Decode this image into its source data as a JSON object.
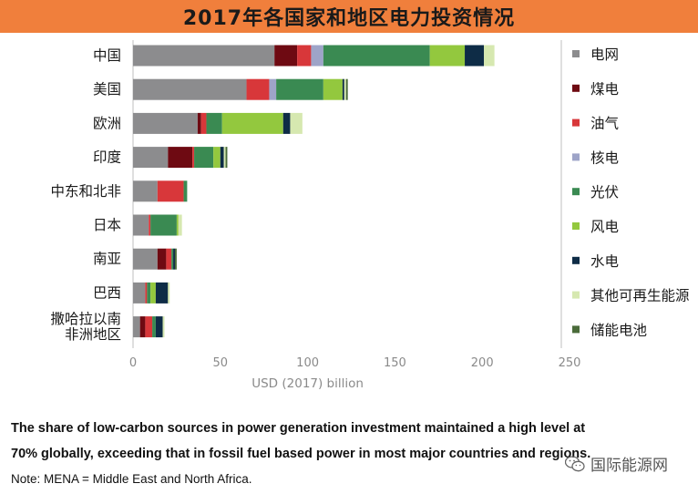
{
  "header": {
    "title": "2017年各国家和地区电力投资情况"
  },
  "caption": "The share of low-carbon sources in power generation investment maintained a high level at 70% globally, exceeding that in fossil fuel based power in most major countries and regions.",
  "note": "Note: MENA = Middle East and North Africa.",
  "watermark": {
    "text": "国际能源网",
    "icon": "wechat-icon"
  },
  "chart_data": {
    "type": "bar",
    "orientation": "horizontal",
    "stacked": true,
    "title": "2017年各国家和地区电力投资情况",
    "xlabel": "USD (2017) billion",
    "ylabel": "",
    "xlim": [
      0,
      250
    ],
    "xticks": [
      0,
      50,
      100,
      150,
      200,
      250
    ],
    "grid": false,
    "legend_position": "right",
    "categories": [
      "中国",
      "美国",
      "欧洲",
      "印度",
      "中东和北非",
      "日本",
      "南亚",
      "巴西",
      "撒哈拉以南非洲地区"
    ],
    "category_lines": [
      [
        "中国"
      ],
      [
        "美国"
      ],
      [
        "欧洲"
      ],
      [
        "印度"
      ],
      [
        "中东和北非"
      ],
      [
        "日本"
      ],
      [
        "南亚"
      ],
      [
        "巴西"
      ],
      [
        "撒哈拉以南",
        "非洲地区"
      ]
    ],
    "series": [
      {
        "name": "电网",
        "color": "#8c8c8e",
        "values": [
          81,
          65,
          37,
          20,
          14,
          9,
          14,
          7,
          4
        ]
      },
      {
        "name": "煤电",
        "color": "#6e0a12",
        "values": [
          13,
          0,
          2,
          14,
          0,
          0,
          5,
          0,
          3
        ]
      },
      {
        "name": "油气",
        "color": "#d8373a",
        "values": [
          8,
          13,
          3,
          1,
          15,
          1,
          3,
          1,
          4
        ]
      },
      {
        "name": "核电",
        "color": "#9ea4c8",
        "values": [
          7,
          4,
          0,
          0,
          0,
          0,
          0,
          0,
          0
        ]
      },
      {
        "name": "光伏",
        "color": "#3a8a52",
        "values": [
          61,
          27,
          9,
          11,
          2,
          15,
          1,
          2,
          2
        ]
      },
      {
        "name": "风电",
        "color": "#93c83e",
        "values": [
          20,
          11,
          35,
          4,
          0,
          1,
          0,
          3,
          0
        ]
      },
      {
        "name": "水电",
        "color": "#0e2c46",
        "values": [
          11,
          1,
          4,
          2,
          0,
          0,
          1,
          7,
          4
        ]
      },
      {
        "name": "其他可再生能源",
        "color": "#d6e8b0",
        "values": [
          6,
          1,
          7,
          1,
          0,
          2,
          0,
          1,
          1
        ]
      },
      {
        "name": "储能电池",
        "color": "#4a6b3a",
        "values": [
          0,
          1,
          0,
          1,
          0,
          0,
          1,
          0,
          0
        ]
      }
    ]
  }
}
